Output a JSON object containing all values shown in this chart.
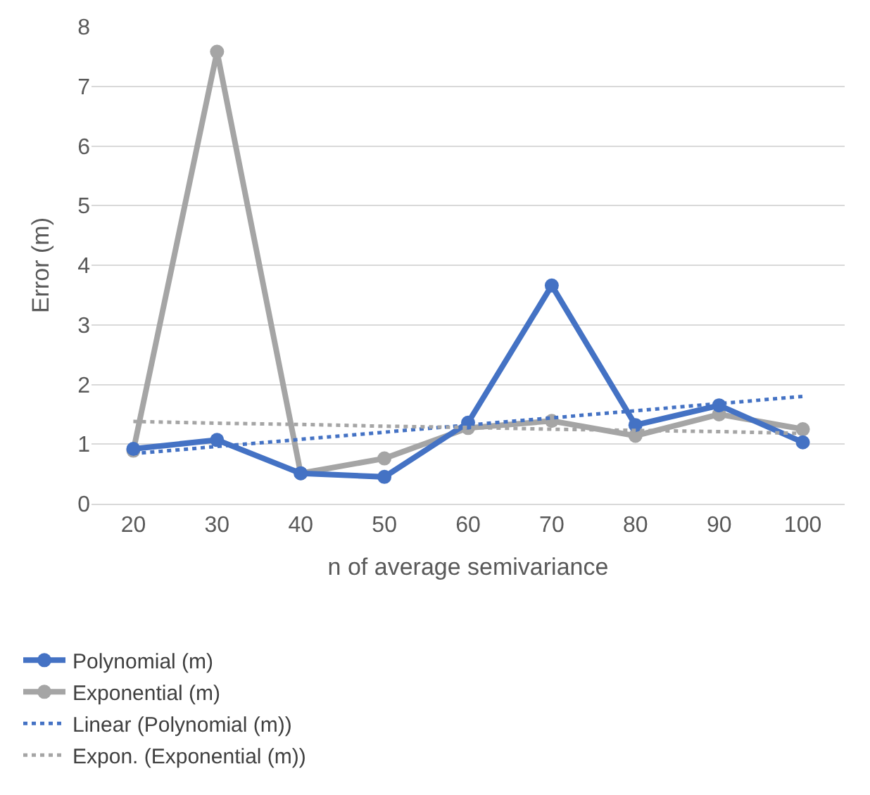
{
  "chart_data": {
    "type": "line",
    "xlabel": "n of average semivariance",
    "ylabel": "Error (m)",
    "categories": [
      "20",
      "30",
      "40",
      "50",
      "60",
      "70",
      "80",
      "90",
      "100"
    ],
    "ylim": [
      0,
      8
    ],
    "yticks": [
      0,
      1,
      2,
      3,
      4,
      5,
      6,
      7,
      8
    ],
    "grid": "y",
    "legend": "bottom",
    "series": [
      {
        "name": "Polynomial (m)",
        "color": "#4472c4",
        "marker": "circle",
        "line_style": "solid",
        "values": [
          0.92,
          1.07,
          0.51,
          0.45,
          1.36,
          3.66,
          1.32,
          1.65,
          1.03
        ]
      },
      {
        "name": "Exponential (m)",
        "color": "#a5a5a5",
        "marker": "circle",
        "line_style": "solid",
        "values": [
          0.89,
          7.58,
          0.51,
          0.76,
          1.27,
          1.39,
          1.14,
          1.5,
          1.25
        ]
      },
      {
        "name": "Linear (Polynomial (m))",
        "color": "#4472c4",
        "marker": "none",
        "line_style": "dotted",
        "values": [
          0.84,
          0.96,
          1.08,
          1.2,
          1.32,
          1.44,
          1.56,
          1.68,
          1.8
        ]
      },
      {
        "name": "Expon. (Exponential (m))",
        "color": "#a5a5a5",
        "marker": "none",
        "line_style": "dotted",
        "values": [
          1.38,
          1.35,
          1.33,
          1.3,
          1.28,
          1.25,
          1.23,
          1.21,
          1.18
        ]
      }
    ]
  }
}
